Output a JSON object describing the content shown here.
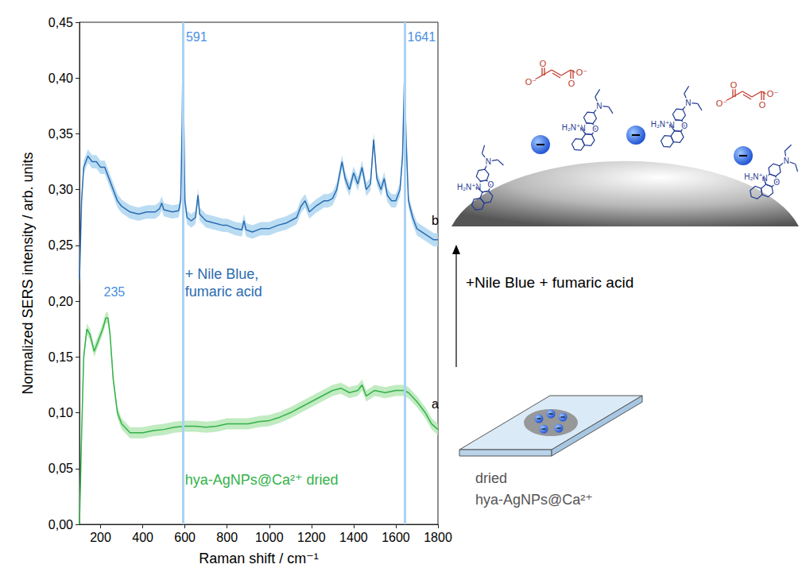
{
  "chart_data": {
    "type": "line",
    "x_label": "Raman shift / cm⁻¹",
    "y_label": "Normalized SERS intensity / arb. units",
    "xlim": [
      100,
      1800
    ],
    "xticks": [
      200,
      400,
      600,
      800,
      1000,
      1200,
      1400,
      1600,
      1800
    ],
    "ylim": [
      0,
      0.45
    ],
    "yticks": [
      {
        "value": 0,
        "label": "0,00"
      },
      {
        "value": 0.05,
        "label": "0,05"
      },
      {
        "value": 0.1,
        "label": "0,10"
      },
      {
        "value": 0.15,
        "label": "0,15"
      },
      {
        "value": 0.2,
        "label": "0,20"
      },
      {
        "value": 0.25,
        "label": "0,25"
      },
      {
        "value": 0.3,
        "label": "0,30"
      },
      {
        "value": 0.35,
        "label": "0,35"
      },
      {
        "value": 0.4,
        "label": "0,40"
      },
      {
        "value": 0.45,
        "label": "0,45"
      }
    ],
    "grid": false,
    "series": [
      {
        "name": "+ Nile Blue,\nfumaric acid",
        "name_at": [
          600,
          0.232
        ],
        "color": "#2b6cb0",
        "band_color": "#aed6f1",
        "error": 0.006,
        "x": [
          100,
          110,
          120,
          140,
          160,
          180,
          200,
          220,
          240,
          260,
          280,
          300,
          340,
          380,
          420,
          460,
          480,
          490,
          500,
          540,
          570,
          580,
          587,
          591,
          595,
          600,
          610,
          630,
          650,
          662,
          670,
          700,
          740,
          780,
          800,
          840,
          870,
          880,
          890,
          920,
          960,
          1000,
          1040,
          1080,
          1100,
          1130,
          1150,
          1170,
          1190,
          1220,
          1260,
          1280,
          1300,
          1320,
          1345,
          1360,
          1380,
          1400,
          1420,
          1440,
          1460,
          1480,
          1495,
          1510,
          1530,
          1545,
          1560,
          1580,
          1600,
          1620,
          1632,
          1641,
          1650,
          1660,
          1680,
          1700,
          1740,
          1780,
          1800
        ],
        "values": [
          0.22,
          0.29,
          0.32,
          0.33,
          0.325,
          0.325,
          0.32,
          0.32,
          0.31,
          0.3,
          0.29,
          0.285,
          0.28,
          0.278,
          0.28,
          0.28,
          0.283,
          0.288,
          0.282,
          0.28,
          0.281,
          0.29,
          0.36,
          0.43,
          0.36,
          0.29,
          0.275,
          0.272,
          0.275,
          0.295,
          0.278,
          0.272,
          0.27,
          0.268,
          0.268,
          0.265,
          0.264,
          0.272,
          0.264,
          0.262,
          0.265,
          0.265,
          0.268,
          0.27,
          0.272,
          0.275,
          0.285,
          0.29,
          0.28,
          0.285,
          0.29,
          0.29,
          0.292,
          0.3,
          0.325,
          0.31,
          0.3,
          0.315,
          0.305,
          0.32,
          0.3,
          0.305,
          0.345,
          0.31,
          0.3,
          0.31,
          0.295,
          0.29,
          0.29,
          0.3,
          0.33,
          0.4,
          0.34,
          0.29,
          0.275,
          0.265,
          0.26,
          0.255,
          0.255
        ]
      },
      {
        "name": "hya-AgNPs@Ca²⁺ dried",
        "name_at": [
          600,
          0.048
        ],
        "color": "#33b249",
        "band_color": "#b6e8b6",
        "error": 0.005,
        "x": [
          100,
          110,
          120,
          135,
          150,
          170,
          190,
          210,
          225,
          235,
          245,
          260,
          280,
          300,
          340,
          400,
          450,
          500,
          550,
          600,
          650,
          700,
          750,
          800,
          850,
          900,
          950,
          1000,
          1050,
          1100,
          1150,
          1200,
          1250,
          1300,
          1340,
          1380,
          1420,
          1440,
          1460,
          1500,
          1550,
          1600,
          1640,
          1660,
          1700,
          1740,
          1770,
          1800
        ],
        "values": [
          0.0,
          0.08,
          0.15,
          0.175,
          0.17,
          0.155,
          0.165,
          0.175,
          0.185,
          0.185,
          0.17,
          0.13,
          0.1,
          0.09,
          0.082,
          0.082,
          0.084,
          0.085,
          0.087,
          0.088,
          0.088,
          0.087,
          0.088,
          0.09,
          0.09,
          0.09,
          0.092,
          0.093,
          0.096,
          0.1,
          0.105,
          0.11,
          0.115,
          0.12,
          0.122,
          0.118,
          0.12,
          0.125,
          0.115,
          0.12,
          0.118,
          0.12,
          0.12,
          0.118,
          0.11,
          0.1,
          0.09,
          0.085
        ]
      }
    ],
    "vlines": [
      591,
      1641
    ],
    "annotations": [
      {
        "text": "591",
        "x": 605,
        "y": 0.437,
        "color": "#4a90e2"
      },
      {
        "text": "1641",
        "x": 1655,
        "y": 0.437,
        "color": "#4a90e2"
      },
      {
        "text": "235",
        "x": 215,
        "y": 0.208,
        "color": "#4a90e2"
      },
      {
        "text": "b",
        "x": 1770,
        "y": 0.272,
        "color": "#000000"
      },
      {
        "text": "a",
        "x": 1770,
        "y": 0.108,
        "color": "#000000"
      }
    ]
  },
  "scheme": {
    "arrow_label": "+Nile Blue + fumaric acid",
    "substrate_label": [
      "dried",
      "hya-AgNPs@Ca²⁺"
    ],
    "nile_blue_atoms": [
      "N",
      "O",
      "N",
      "H₂N⁺"
    ],
    "fumarate_atoms": [
      "O⁻",
      "O"
    ]
  }
}
